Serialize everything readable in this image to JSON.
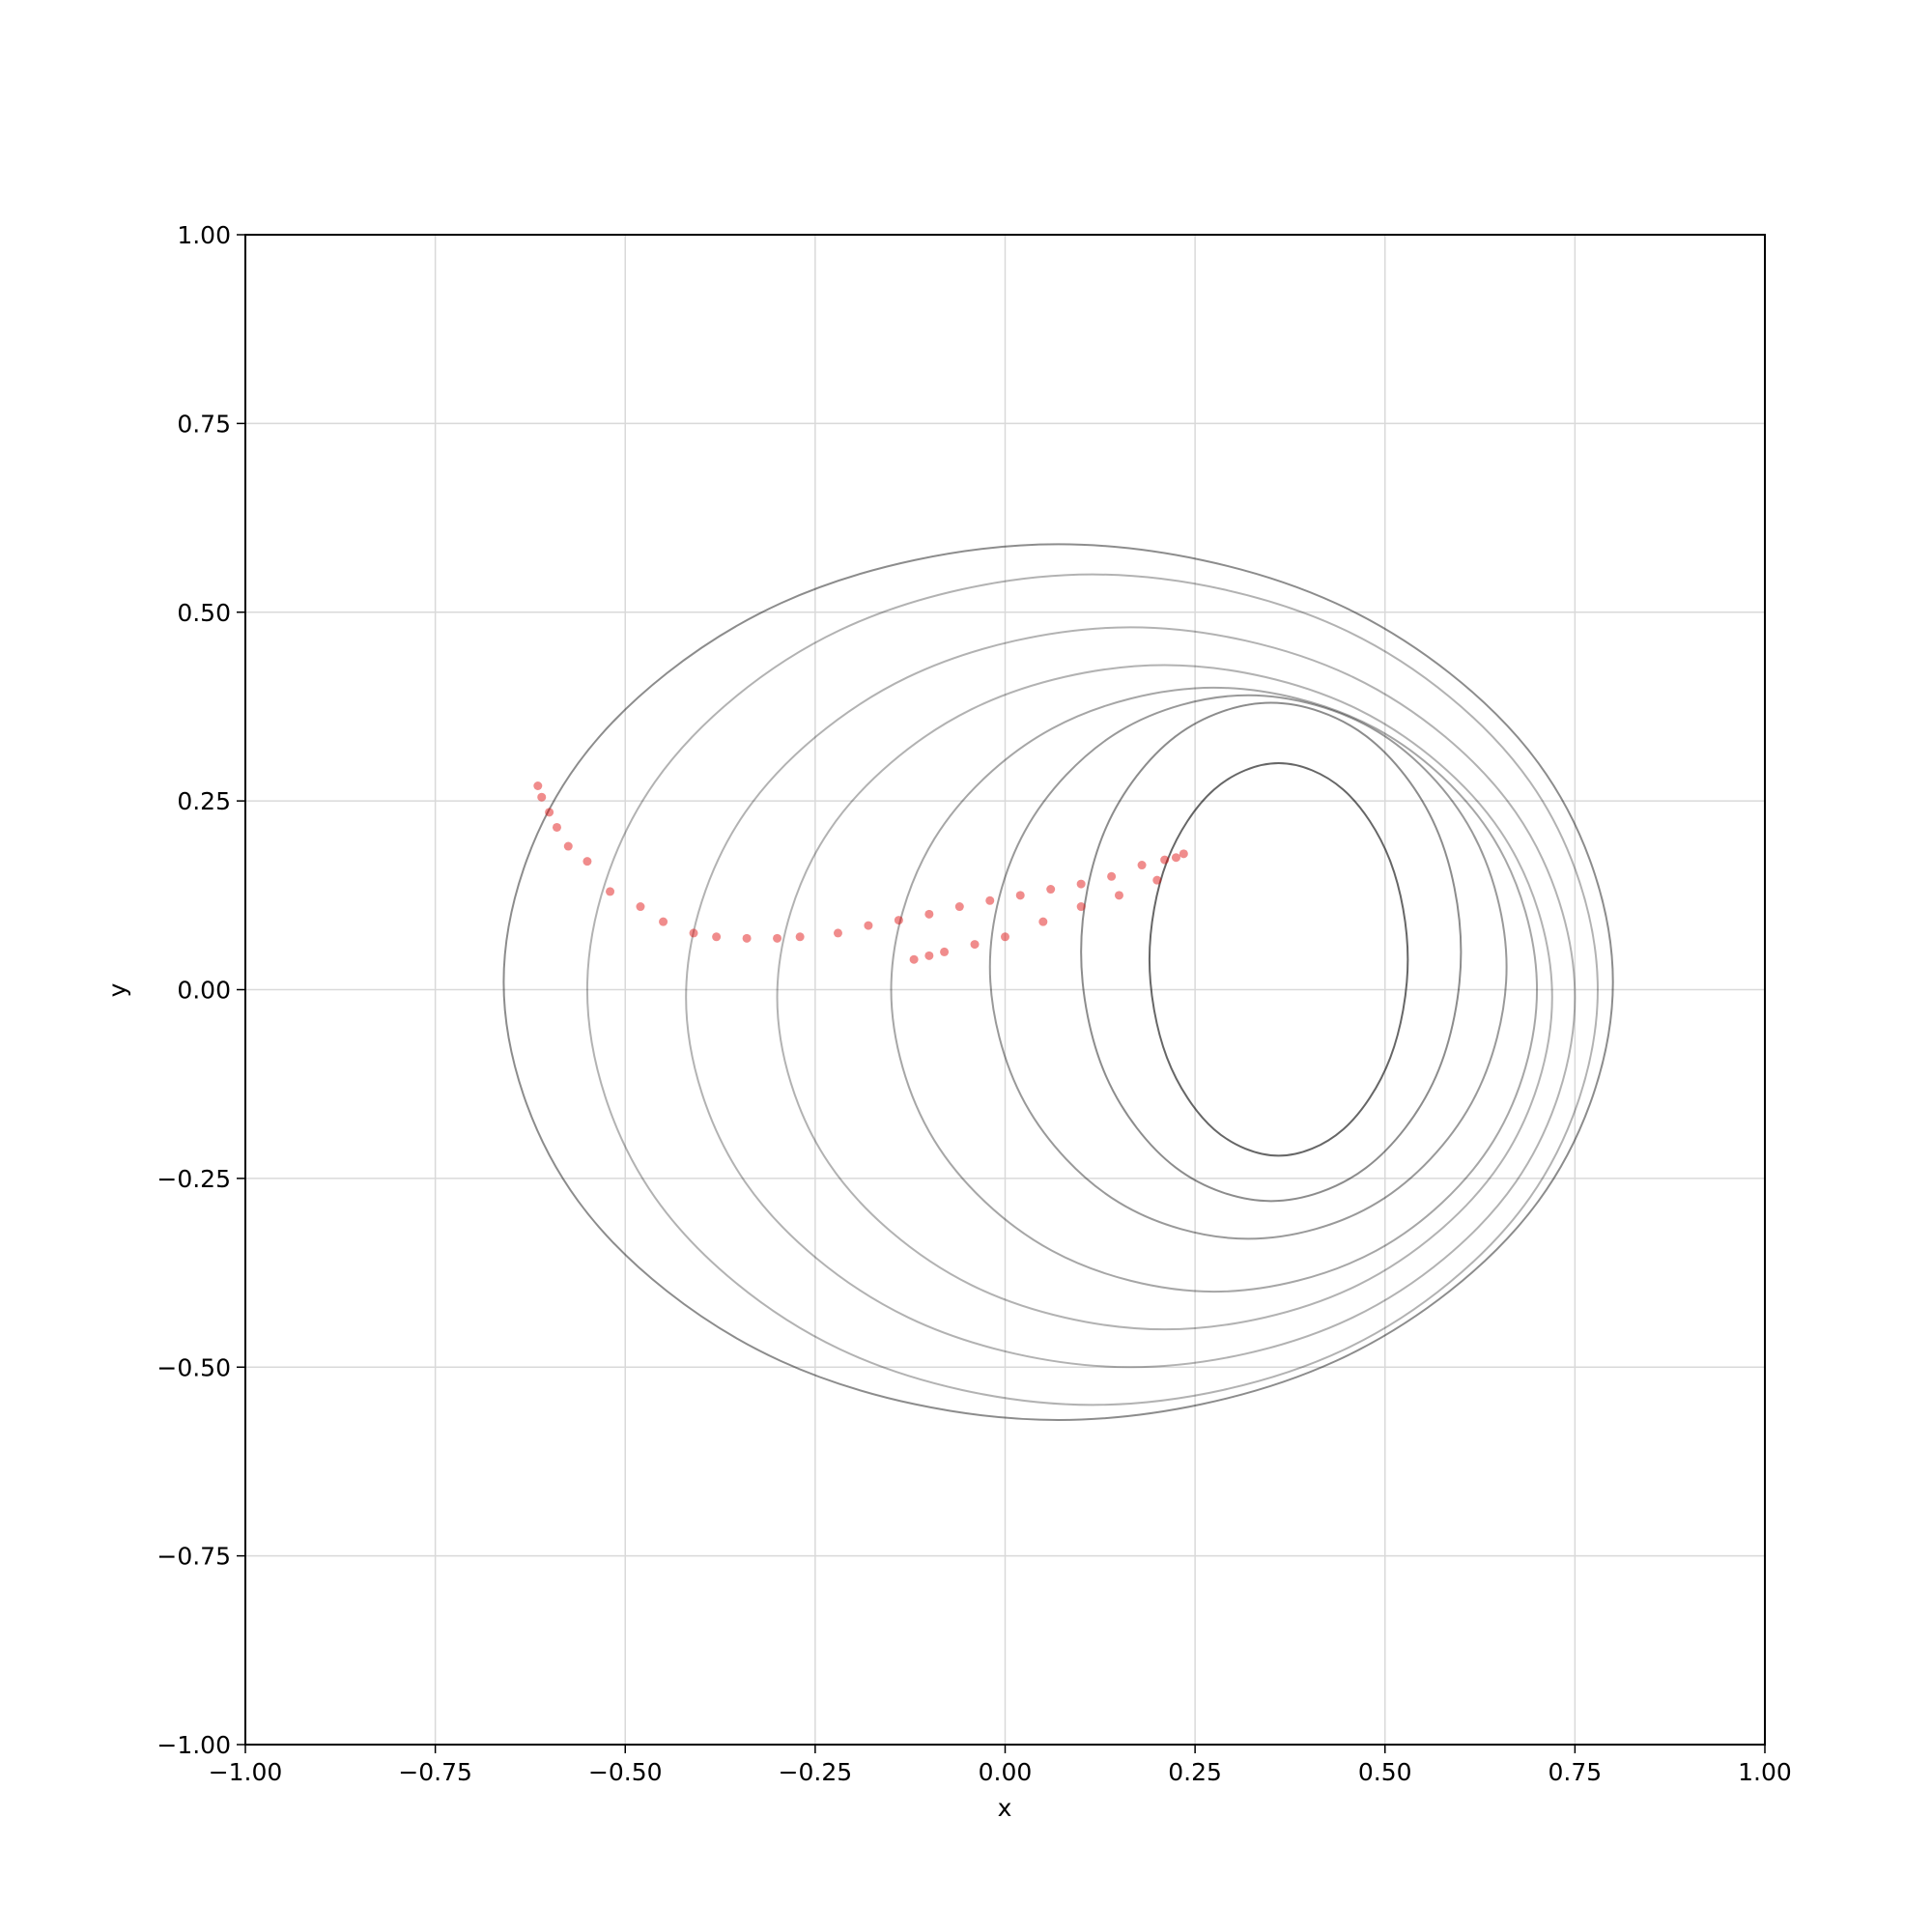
{
  "chart_data": {
    "type": "line",
    "xlabel": "x",
    "ylabel": "y",
    "xlim": [
      -1,
      1
    ],
    "ylim": [
      -1,
      1
    ],
    "grid": true,
    "xticks": [
      {
        "value": -1,
        "label": "−1.00"
      },
      {
        "value": -0.75,
        "label": "−0.75"
      },
      {
        "value": -0.5,
        "label": "−0.50"
      },
      {
        "value": -0.25,
        "label": "−0.25"
      },
      {
        "value": 0,
        "label": "0.00"
      },
      {
        "value": 0.25,
        "label": "0.25"
      },
      {
        "value": 0.5,
        "label": "0.50"
      },
      {
        "value": 0.75,
        "label": "0.75"
      },
      {
        "value": 1,
        "label": "1.00"
      }
    ],
    "yticks": [
      {
        "value": -1,
        "label": "−1.00"
      },
      {
        "value": -0.75,
        "label": "−0.75"
      },
      {
        "value": -0.5,
        "label": "−0.50"
      },
      {
        "value": -0.25,
        "label": "−0.25"
      },
      {
        "value": 0,
        "label": "0.00"
      },
      {
        "value": 0.25,
        "label": "0.25"
      },
      {
        "value": 0.5,
        "label": "0.50"
      },
      {
        "value": 0.75,
        "label": "0.75"
      },
      {
        "value": 1,
        "label": "1.00"
      }
    ],
    "series": [
      {
        "type": "line",
        "color": "#000000",
        "alpha": 0.45,
        "closed": true,
        "x": [
          0.8,
          0.702,
          0.435,
          0.07,
          -0.295,
          -0.562,
          -0.66,
          -0.562,
          -0.295,
          0.07,
          0.435,
          0.702
        ],
        "y": [
          0.01,
          0.3,
          0.512,
          0.59,
          0.512,
          0.3,
          0.01,
          -0.28,
          -0.492,
          -0.57,
          -0.492,
          -0.28
        ]
      },
      {
        "type": "line",
        "color": "#000000",
        "alpha": 0.3,
        "closed": true,
        "x": [
          0.78,
          0.691,
          0.448,
          0.115,
          -0.218,
          -0.461,
          -0.55,
          -0.461,
          -0.218,
          0.115,
          0.448,
          0.691
        ],
        "y": [
          0,
          0.275,
          0.476,
          0.55,
          0.476,
          0.275,
          0,
          -0.275,
          -0.476,
          -0.55,
          -0.476,
          -0.275
        ]
      },
      {
        "type": "line",
        "color": "#000000",
        "alpha": 0.3,
        "closed": true,
        "x": [
          0.75,
          0.672,
          0.458,
          0.165,
          -0.128,
          -0.342,
          -0.42,
          -0.342,
          -0.128,
          0.165,
          0.458,
          0.672
        ],
        "y": [
          -0.01,
          0.235,
          0.414,
          0.48,
          0.414,
          0.235,
          -0.01,
          -0.255,
          -0.434,
          -0.5,
          -0.434,
          -0.255
        ]
      },
      {
        "type": "line",
        "color": "#000000",
        "alpha": 0.3,
        "closed": true,
        "x": [
          0.72,
          0.652,
          0.465,
          0.21,
          -0.045,
          -0.232,
          -0.3,
          -0.232,
          -0.045,
          0.21,
          0.465,
          0.652
        ],
        "y": [
          -0.01,
          0.21,
          0.371,
          0.43,
          0.371,
          0.21,
          -0.01,
          -0.23,
          -0.391,
          -0.45,
          -0.391,
          -0.23
        ]
      },
      {
        "type": "line",
        "color": "#000000",
        "alpha": 0.35,
        "closed": true,
        "x": [
          0.7,
          0.643,
          0.488,
          0.275,
          0.062,
          -0.093,
          -0.15,
          -0.093,
          0.062,
          0.275,
          0.488,
          0.643
        ],
        "y": [
          0,
          0.2,
          0.346,
          0.4,
          0.346,
          0.2,
          0,
          -0.2,
          -0.346,
          -0.4,
          -0.346,
          -0.2
        ]
      },
      {
        "type": "line",
        "color": "#000000",
        "alpha": 0.4,
        "closed": true,
        "x": [
          0.66,
          0.614,
          0.49,
          0.32,
          0.15,
          0.026,
          -0.02,
          0.026,
          0.15,
          0.32,
          0.49,
          0.614
        ],
        "y": [
          0.03,
          0.21,
          0.342,
          0.39,
          0.342,
          0.21,
          0.03,
          -0.15,
          -0.282,
          -0.33,
          -0.282,
          -0.15
        ]
      },
      {
        "type": "line",
        "color": "#000000",
        "alpha": 0.45,
        "closed": true,
        "x": [
          0.6,
          0.567,
          0.475,
          0.35,
          0.225,
          0.133,
          0.1,
          0.133,
          0.225,
          0.35,
          0.475,
          0.567
        ],
        "y": [
          0.05,
          0.215,
          0.336,
          0.38,
          0.336,
          0.215,
          0.05,
          -0.115,
          -0.236,
          -0.28,
          -0.236,
          -0.115
        ]
      },
      {
        "type": "line",
        "color": "#000000",
        "alpha": 0.6,
        "closed": true,
        "x": [
          0.53,
          0.507,
          0.445,
          0.36,
          0.275,
          0.213,
          0.19,
          0.213,
          0.275,
          0.36,
          0.445,
          0.507
        ],
        "y": [
          0.04,
          0.17,
          0.265,
          0.3,
          0.265,
          0.17,
          0.04,
          -0.09,
          -0.185,
          -0.22,
          -0.185,
          -0.09
        ]
      },
      {
        "type": "scatter",
        "color": "#dd0000",
        "alpha": 0.45,
        "x": [
          -0.615,
          -0.61,
          -0.6,
          -0.59,
          -0.575,
          -0.55,
          -0.52,
          -0.48,
          -0.45,
          -0.41,
          -0.38,
          -0.34,
          -0.3,
          -0.27,
          -0.22,
          -0.18,
          -0.14,
          -0.1,
          -0.06,
          -0.02,
          0.02,
          0.06,
          0.1,
          0.14,
          0.18,
          0.21,
          0.225,
          0.235,
          0.2,
          0.15,
          0.1,
          0.05,
          0.0,
          -0.04,
          -0.08,
          -0.1,
          -0.12
        ],
        "y": [
          0.27,
          0.255,
          0.235,
          0.215,
          0.19,
          0.17,
          0.13,
          0.11,
          0.09,
          0.075,
          0.07,
          0.068,
          0.068,
          0.07,
          0.075,
          0.085,
          0.092,
          0.1,
          0.11,
          0.118,
          0.125,
          0.133,
          0.14,
          0.15,
          0.165,
          0.172,
          0.175,
          0.18,
          0.145,
          0.125,
          0.11,
          0.09,
          0.07,
          0.06,
          0.05,
          0.045,
          0.04
        ]
      }
    ]
  }
}
